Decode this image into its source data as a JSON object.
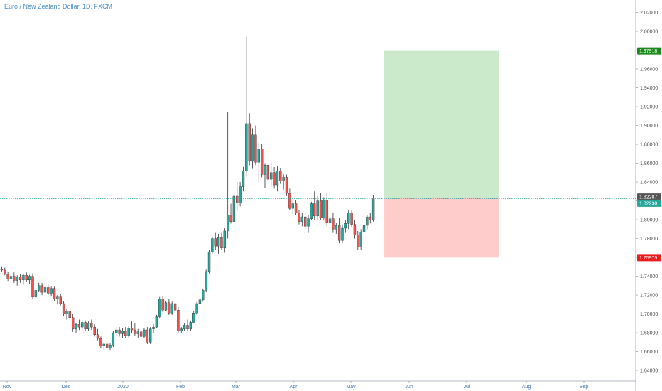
{
  "title": "Euro / New Zealand Dollar, 1D, FXCM",
  "chart_data": {
    "type": "candlestick",
    "ylim": [
      1.63,
      2.03
    ],
    "y_ticks": [
      "2.02000",
      "2.00000",
      "1.98000",
      "1.96000",
      "1.94000",
      "1.92000",
      "1.90000",
      "1.88000",
      "1.86000",
      "1.84000",
      "1.82000",
      "1.80000",
      "1.78000",
      "1.76000",
      "1.74000",
      "1.72000",
      "1.70000",
      "1.68000",
      "1.66000",
      "1.64000"
    ],
    "x_ticks": [
      "Nov",
      "Dec",
      "2020",
      "Feb",
      "Mar",
      "Apr",
      "May",
      "Jun",
      "Jul",
      "Aug",
      "Sep"
    ],
    "price_line": 1.8223,
    "price_line_label": "1.82230",
    "position": {
      "entry": 1.82287,
      "entry_label": "1.82287",
      "target": 1.97918,
      "target_label": "1.97918",
      "stop": 1.75975,
      "stop_label": "1.75975",
      "start_bar": 124,
      "end_bar": 160
    },
    "colors": {
      "up": "#26a69a",
      "down": "#ef5350",
      "target_zone": "#cbeacb",
      "stop_zone": "#ffcccc",
      "target_tag": "#1b8a1b",
      "stop_tag": "#e81e1e",
      "price_tag": "#26a69a",
      "entry_tag": "#555555"
    },
    "candles": [
      [
        1.7475,
        1.7505,
        1.7445,
        1.7465
      ],
      [
        1.7465,
        1.749,
        1.741,
        1.742
      ],
      [
        1.742,
        1.7445,
        1.735,
        1.737
      ],
      [
        1.737,
        1.742,
        1.73,
        1.74
      ],
      [
        1.74,
        1.744,
        1.733,
        1.7355
      ],
      [
        1.7355,
        1.741,
        1.73,
        1.739
      ],
      [
        1.739,
        1.742,
        1.733,
        1.736
      ],
      [
        1.736,
        1.743,
        1.731,
        1.741
      ],
      [
        1.741,
        1.744,
        1.734,
        1.736
      ],
      [
        1.736,
        1.7415,
        1.732,
        1.74
      ],
      [
        1.74,
        1.743,
        1.716,
        1.718
      ],
      [
        1.718,
        1.727,
        1.715,
        1.725
      ],
      [
        1.725,
        1.733,
        1.723,
        1.73
      ],
      [
        1.73,
        1.733,
        1.72,
        1.723
      ],
      [
        1.723,
        1.731,
        1.72,
        1.728
      ],
      [
        1.728,
        1.731,
        1.72,
        1.722
      ],
      [
        1.722,
        1.729,
        1.719,
        1.727
      ],
      [
        1.727,
        1.729,
        1.714,
        1.716
      ],
      [
        1.716,
        1.72,
        1.71,
        1.718
      ],
      [
        1.718,
        1.721,
        1.709,
        1.711
      ],
      [
        1.711,
        1.714,
        1.698,
        1.7
      ],
      [
        1.7,
        1.705,
        1.694,
        1.703
      ],
      [
        1.703,
        1.706,
        1.693,
        1.696
      ],
      [
        1.696,
        1.7,
        1.681,
        1.684
      ],
      [
        1.684,
        1.69,
        1.68,
        1.689
      ],
      [
        1.689,
        1.694,
        1.683,
        1.686
      ],
      [
        1.686,
        1.693,
        1.683,
        1.691
      ],
      [
        1.691,
        1.693,
        1.682,
        1.684
      ],
      [
        1.684,
        1.692,
        1.682,
        1.69
      ],
      [
        1.69,
        1.694,
        1.683,
        1.686
      ],
      [
        1.686,
        1.689,
        1.676,
        1.678
      ],
      [
        1.678,
        1.684,
        1.672,
        1.674
      ],
      [
        1.674,
        1.676,
        1.664,
        1.666
      ],
      [
        1.666,
        1.67,
        1.662,
        1.668
      ],
      [
        1.668,
        1.671,
        1.662,
        1.664
      ],
      [
        1.664,
        1.669,
        1.661,
        1.667
      ],
      [
        1.667,
        1.682,
        1.665,
        1.68
      ],
      [
        1.68,
        1.686,
        1.676,
        1.683
      ],
      [
        1.683,
        1.686,
        1.676,
        1.679
      ],
      [
        1.679,
        1.685,
        1.674,
        1.682
      ],
      [
        1.682,
        1.686,
        1.674,
        1.677
      ],
      [
        1.677,
        1.687,
        1.675,
        1.685
      ],
      [
        1.685,
        1.692,
        1.68,
        1.683
      ],
      [
        1.683,
        1.69,
        1.677,
        1.679
      ],
      [
        1.679,
        1.684,
        1.674,
        1.681
      ],
      [
        1.681,
        1.686,
        1.674,
        1.676
      ],
      [
        1.676,
        1.685,
        1.674,
        1.683
      ],
      [
        1.683,
        1.686,
        1.668,
        1.67
      ],
      [
        1.67,
        1.686,
        1.668,
        1.684
      ],
      [
        1.684,
        1.689,
        1.68,
        1.686
      ],
      [
        1.686,
        1.699,
        1.685,
        1.697
      ],
      [
        1.697,
        1.718,
        1.695,
        1.716
      ],
      [
        1.716,
        1.719,
        1.702,
        1.704
      ],
      [
        1.704,
        1.714,
        1.703,
        1.712
      ],
      [
        1.712,
        1.716,
        1.699,
        1.701
      ],
      [
        1.701,
        1.713,
        1.699,
        1.711
      ],
      [
        1.711,
        1.712,
        1.702,
        1.704
      ],
      [
        1.704,
        1.707,
        1.68,
        1.682
      ],
      [
        1.682,
        1.686,
        1.68,
        1.684
      ],
      [
        1.684,
        1.69,
        1.682,
        1.688
      ],
      [
        1.688,
        1.694,
        1.682,
        1.684
      ],
      [
        1.684,
        1.693,
        1.682,
        1.691
      ],
      [
        1.691,
        1.703,
        1.69,
        1.701
      ],
      [
        1.701,
        1.713,
        1.699,
        1.711
      ],
      [
        1.711,
        1.717,
        1.708,
        1.715
      ],
      [
        1.715,
        1.727,
        1.713,
        1.725
      ],
      [
        1.725,
        1.747,
        1.723,
        1.745
      ],
      [
        1.745,
        1.768,
        1.743,
        1.766
      ],
      [
        1.766,
        1.782,
        1.764,
        1.78
      ],
      [
        1.78,
        1.786,
        1.768,
        1.772
      ],
      [
        1.772,
        1.785,
        1.764,
        1.781
      ],
      [
        1.781,
        1.786,
        1.768,
        1.77
      ],
      [
        1.77,
        1.791,
        1.765,
        1.788
      ],
      [
        1.788,
        1.914,
        1.78,
        1.805
      ],
      [
        1.805,
        1.817,
        1.796,
        1.798
      ],
      [
        1.798,
        1.83,
        1.796,
        1.825
      ],
      [
        1.825,
        1.84,
        1.81,
        1.818
      ],
      [
        1.818,
        1.84,
        1.814,
        1.835
      ],
      [
        1.835,
        1.856,
        1.83,
        1.852
      ],
      [
        1.852,
        1.994,
        1.846,
        1.902
      ],
      [
        1.902,
        1.913,
        1.858,
        1.862
      ],
      [
        1.862,
        1.897,
        1.854,
        1.89
      ],
      [
        1.89,
        1.9,
        1.858,
        1.861
      ],
      [
        1.861,
        1.882,
        1.84,
        1.875
      ],
      [
        1.875,
        1.88,
        1.845,
        1.848
      ],
      [
        1.848,
        1.86,
        1.834,
        1.858
      ],
      [
        1.858,
        1.862,
        1.84,
        1.843
      ],
      [
        1.843,
        1.861,
        1.835,
        1.85
      ],
      [
        1.85,
        1.856,
        1.833,
        1.837
      ],
      [
        1.837,
        1.857,
        1.83,
        1.852
      ],
      [
        1.852,
        1.855,
        1.838,
        1.841
      ],
      [
        1.841,
        1.848,
        1.832,
        1.845
      ],
      [
        1.845,
        1.848,
        1.825,
        1.828
      ],
      [
        1.828,
        1.833,
        1.81,
        1.812
      ],
      [
        1.812,
        1.82,
        1.806,
        1.817
      ],
      [
        1.817,
        1.821,
        1.805,
        1.807
      ],
      [
        1.807,
        1.81,
        1.795,
        1.798
      ],
      [
        1.798,
        1.807,
        1.793,
        1.803
      ],
      [
        1.803,
        1.807,
        1.79,
        1.793
      ],
      [
        1.793,
        1.805,
        1.786,
        1.801
      ],
      [
        1.801,
        1.819,
        1.8,
        1.817
      ],
      [
        1.817,
        1.83,
        1.8,
        1.804
      ],
      [
        1.804,
        1.825,
        1.8,
        1.82
      ],
      [
        1.82,
        1.828,
        1.8,
        1.802
      ],
      [
        1.802,
        1.824,
        1.8,
        1.821
      ],
      [
        1.821,
        1.829,
        1.793,
        1.797
      ],
      [
        1.797,
        1.805,
        1.788,
        1.801
      ],
      [
        1.801,
        1.807,
        1.786,
        1.79
      ],
      [
        1.79,
        1.797,
        1.785,
        1.794
      ],
      [
        1.794,
        1.802,
        1.775,
        1.778
      ],
      [
        1.778,
        1.795,
        1.775,
        1.791
      ],
      [
        1.791,
        1.8,
        1.786,
        1.796
      ],
      [
        1.796,
        1.81,
        1.79,
        1.807
      ],
      [
        1.807,
        1.81,
        1.792,
        1.795
      ],
      [
        1.795,
        1.8,
        1.78,
        1.784
      ],
      [
        1.784,
        1.788,
        1.768,
        1.771
      ],
      [
        1.771,
        1.79,
        1.768,
        1.787
      ],
      [
        1.787,
        1.798,
        1.784,
        1.794
      ],
      [
        1.794,
        1.805,
        1.79,
        1.803
      ],
      [
        1.803,
        1.807,
        1.796,
        1.8
      ],
      [
        1.8,
        1.826,
        1.798,
        1.8223
      ]
    ]
  }
}
